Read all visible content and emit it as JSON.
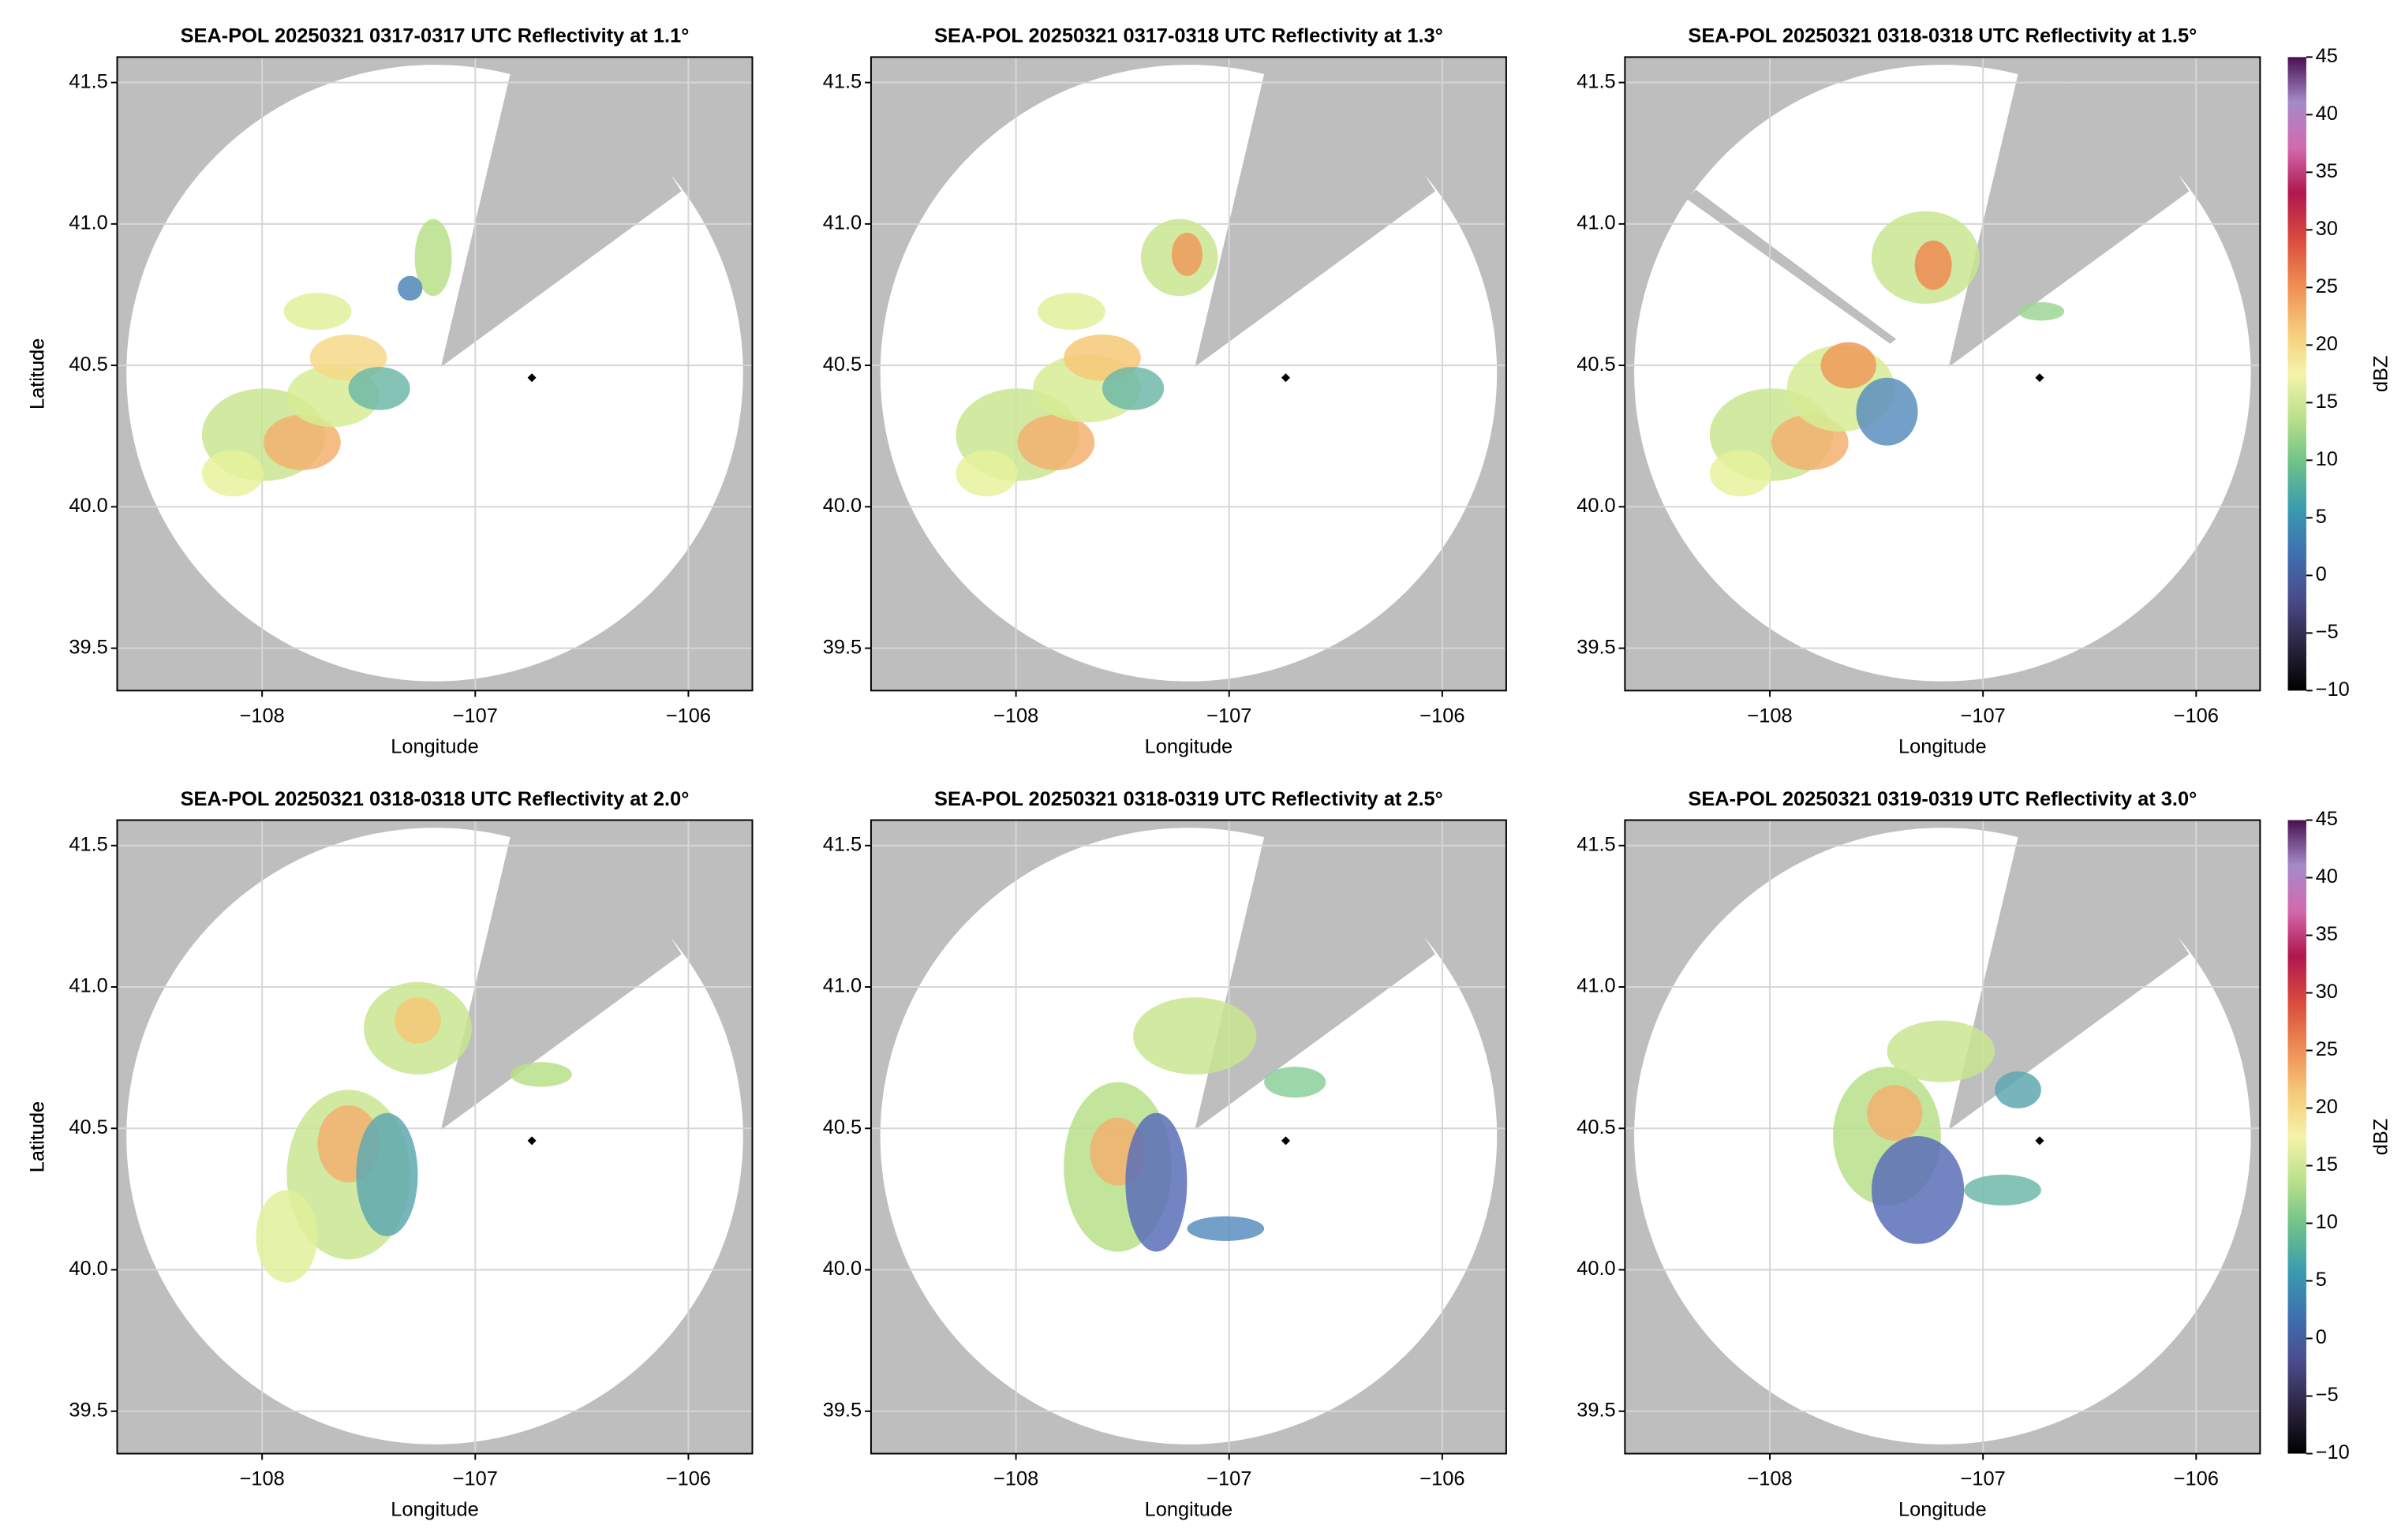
{
  "chart_data": [
    {
      "type": "radar",
      "title": "SEA-POL 20250321 0317-0317 UTC Reflectivity at 1.1°",
      "xlabel": "Longitude",
      "ylabel": "Latitude",
      "xlim": [
        -108.68,
        -105.7
      ],
      "ylim": [
        39.35,
        41.59
      ],
      "xticks": [
        {
          "value": -108,
          "label": "−108"
        },
        {
          "value": -107,
          "label": "−107"
        },
        {
          "value": -106,
          "label": "−106"
        }
      ],
      "yticks": [
        39.5,
        {
          "value": 40,
          "label": "40.0"
        },
        40.5,
        {
          "value": 41,
          "label": "41.0"
        },
        41.5
      ],
      "grid": true
    },
    {
      "type": "radar",
      "title": "SEA-POL 20250321 0317-0318 UTC Reflectivity at 1.3°",
      "xlabel": "Longitude",
      "ylabel": "Latitude",
      "xlim": [
        -108.68,
        -105.7
      ],
      "ylim": [
        39.35,
        41.59
      ],
      "xticks": [
        {
          "value": -108,
          "label": "−108"
        },
        {
          "value": -107,
          "label": "−107"
        },
        {
          "value": -106,
          "label": "−106"
        }
      ],
      "yticks": [
        39.5,
        {
          "value": 40,
          "label": "40.0"
        },
        40.5,
        {
          "value": 41,
          "label": "41.0"
        },
        41.5
      ],
      "grid": true
    },
    {
      "type": "radar",
      "title": "SEA-POL 20250321 0318-0318 UTC Reflectivity at 1.5°",
      "xlabel": "Longitude",
      "ylabel": "Latitude",
      "xlim": [
        -108.68,
        -105.7
      ],
      "ylim": [
        39.35,
        41.59
      ],
      "xticks": [
        {
          "value": -108,
          "label": "−108"
        },
        {
          "value": -107,
          "label": "−107"
        },
        {
          "value": -106,
          "label": "−106"
        }
      ],
      "yticks": [
        39.5,
        {
          "value": 40,
          "label": "40.0"
        },
        40.5,
        {
          "value": 41,
          "label": "41.0"
        },
        41.5
      ],
      "grid": true,
      "colorbar": {
        "label": "dBZ",
        "lim": [
          -10,
          45
        ],
        "ticks": [
          {
            "value": -10,
            "label": "−10"
          },
          {
            "value": -5,
            "label": "−5"
          },
          0,
          5,
          10,
          15,
          20,
          25,
          30,
          35,
          40,
          45
        ],
        "colors": [
          "#000000",
          "#2b2540",
          "#4a4a8a",
          "#3f6fb0",
          "#3a9ab0",
          "#6cc08a",
          "#b8e08a",
          "#f5f3a8",
          "#f6c877",
          "#ee8a52",
          "#d9493c",
          "#b0174e",
          "#d26ab0",
          "#a58ac8",
          "#4a1050"
        ]
      }
    },
    {
      "type": "radar",
      "title": "SEA-POL 20250321 0318-0318 UTC Reflectivity at 2.0°",
      "xlabel": "Longitude",
      "ylabel": "Latitude",
      "xlim": [
        -108.68,
        -105.7
      ],
      "ylim": [
        39.35,
        41.59
      ],
      "xticks": [
        {
          "value": -108,
          "label": "−108"
        },
        {
          "value": -107,
          "label": "−107"
        },
        {
          "value": -106,
          "label": "−106"
        }
      ],
      "yticks": [
        39.5,
        {
          "value": 40,
          "label": "40.0"
        },
        40.5,
        {
          "value": 41,
          "label": "41.0"
        },
        41.5
      ],
      "grid": true
    },
    {
      "type": "radar",
      "title": "SEA-POL 20250321 0318-0319 UTC Reflectivity at 2.5°",
      "xlabel": "Longitude",
      "ylabel": "Latitude",
      "xlim": [
        -108.68,
        -105.7
      ],
      "ylim": [
        39.35,
        41.59
      ],
      "xticks": [
        {
          "value": -108,
          "label": "−108"
        },
        {
          "value": -107,
          "label": "−107"
        },
        {
          "value": -106,
          "label": "−106"
        }
      ],
      "yticks": [
        39.5,
        {
          "value": 40,
          "label": "40.0"
        },
        40.5,
        {
          "value": 41,
          "label": "41.0"
        },
        41.5
      ],
      "grid": true
    },
    {
      "type": "radar",
      "title": "SEA-POL 20250321 0319-0319 UTC Reflectivity at 3.0°",
      "xlabel": "Longitude",
      "ylabel": "Latitude",
      "xlim": [
        -108.68,
        -105.7
      ],
      "ylim": [
        39.35,
        41.59
      ],
      "xticks": [
        {
          "value": -108,
          "label": "−108"
        },
        {
          "value": -107,
          "label": "−107"
        },
        {
          "value": -106,
          "label": "−106"
        }
      ],
      "yticks": [
        39.5,
        {
          "value": 40,
          "label": "40.0"
        },
        40.5,
        {
          "value": 41,
          "label": "41.0"
        },
        41.5
      ],
      "grid": true,
      "colorbar": {
        "label": "dBZ",
        "lim": [
          -10,
          45
        ],
        "ticks": [
          {
            "value": -10,
            "label": "−10"
          },
          {
            "value": -5,
            "label": "−5"
          },
          0,
          5,
          10,
          15,
          20,
          25,
          30,
          35,
          40,
          45
        ],
        "colors": [
          "#000000",
          "#2b2540",
          "#4a4a8a",
          "#3f6fb0",
          "#3a9ab0",
          "#6cc08a",
          "#b8e08a",
          "#f5f3a8",
          "#f6c877",
          "#ee8a52",
          "#d9493c",
          "#b0174e",
          "#d26ab0",
          "#a58ac8",
          "#4a1050"
        ]
      }
    }
  ]
}
